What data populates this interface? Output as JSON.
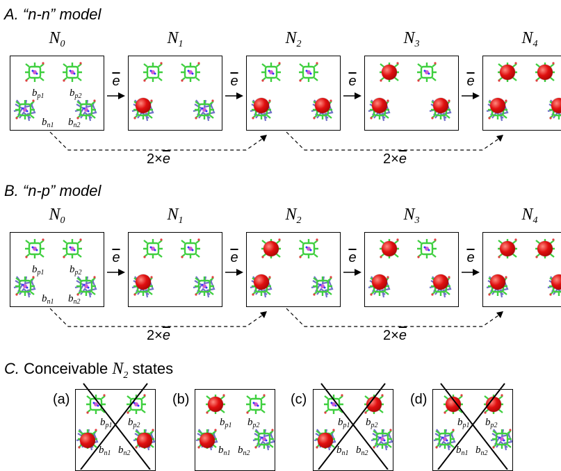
{
  "sections": [
    {
      "letter": "A.",
      "title": "“n-n” model",
      "top": 8
    },
    {
      "letter": "B.",
      "title": "“n-p” model",
      "top": 262
    }
  ],
  "section_c": {
    "letter": "C.",
    "prefix": "Conceivable",
    "n": "N",
    "sub": "2",
    "suffix": "states"
  },
  "n_labels": [
    "N",
    "N",
    "N",
    "N",
    "N"
  ],
  "n_subs": [
    "0",
    "1",
    "2",
    "3",
    "4"
  ],
  "step_label": "e",
  "jump_label": {
    "prefix": "2×",
    "e": "e"
  },
  "b_labels": {
    "bp1": "b",
    "bp1_sub": "p1",
    "bp2": "b",
    "bp2_sub": "p2",
    "bn1": "b",
    "bn1_sub": "n1",
    "bn2": "b",
    "bn2_sub": "n2"
  },
  "cases": [
    "(a)",
    "(b)",
    "(c)",
    "(d)"
  ],
  "colors": {
    "heme_green": "#3fcf3f",
    "heme_blue": "#7070c8",
    "electron": "#e01010"
  }
}
